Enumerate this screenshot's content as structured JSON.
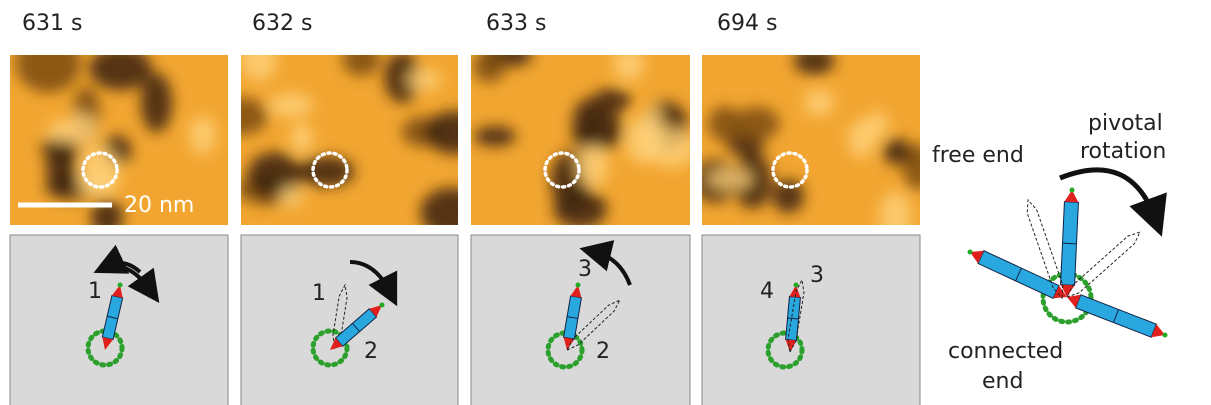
{
  "frames": [
    {
      "time": "631 s",
      "labels": [
        "1"
      ]
    },
    {
      "time": "632 s",
      "labels": [
        "1",
        "2"
      ]
    },
    {
      "time": "633 s",
      "labels": [
        "3",
        "2"
      ]
    },
    {
      "time": "694 s",
      "labels": [
        "4",
        "3"
      ]
    }
  ],
  "scale_bar": "20 nm",
  "schematic": {
    "free_end": "free end",
    "pivotal_rotation": [
      "pivotal",
      "rotation"
    ],
    "connected_end": [
      "connected",
      "end"
    ]
  }
}
